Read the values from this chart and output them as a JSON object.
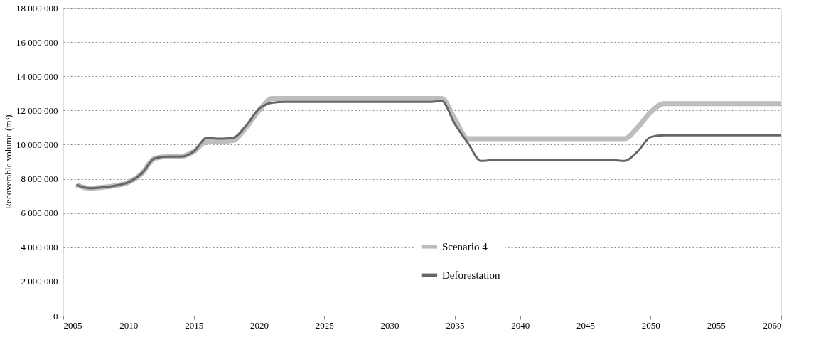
{
  "chart_data": {
    "type": "line",
    "ylabel": "Recoverable volume (m³)",
    "x": [
      2006,
      2007,
      2008,
      2009,
      2010,
      2011,
      2012,
      2013,
      2014,
      2015,
      2016,
      2017,
      2018,
      2019,
      2020,
      2021,
      2022,
      2023,
      2024,
      2025,
      2026,
      2027,
      2028,
      2029,
      2030,
      2031,
      2032,
      2033,
      2034,
      2035,
      2036,
      2037,
      2038,
      2039,
      2040,
      2041,
      2042,
      2043,
      2044,
      2045,
      2046,
      2047,
      2048,
      2049,
      2050,
      2051,
      2052,
      2053,
      2054,
      2055,
      2056,
      2057,
      2058,
      2059,
      2060
    ],
    "series": [
      {
        "name": "Scenario 4",
        "color": "#bdbdbd",
        "values": [
          7650000,
          7450000,
          7500000,
          7600000,
          7800000,
          8300000,
          9200000,
          9300000,
          9300000,
          9600000,
          10200000,
          10200000,
          10250000,
          11000000,
          12000000,
          12700000,
          12700000,
          12700000,
          12700000,
          12700000,
          12700000,
          12700000,
          12700000,
          12700000,
          12700000,
          12700000,
          12700000,
          12700000,
          12700000,
          11500000,
          10350000,
          10350000,
          10350000,
          10350000,
          10350000,
          10350000,
          10350000,
          10350000,
          10350000,
          10350000,
          10350000,
          10350000,
          10350000,
          11000000,
          11900000,
          12400000,
          12400000,
          12400000,
          12400000,
          12400000,
          12400000,
          12400000,
          12400000,
          12400000,
          12400000
        ]
      },
      {
        "name": "Deforestation",
        "color": "#666666",
        "values": [
          7650000,
          7450000,
          7500000,
          7600000,
          7800000,
          8300000,
          9200000,
          9300000,
          9300000,
          9600000,
          10400000,
          10350000,
          10400000,
          11100000,
          12100000,
          12450000,
          12500000,
          12500000,
          12500000,
          12500000,
          12500000,
          12500000,
          12500000,
          12500000,
          12500000,
          12500000,
          12500000,
          12500000,
          12550000,
          11200000,
          10100000,
          9050000,
          9100000,
          9100000,
          9100000,
          9100000,
          9100000,
          9100000,
          9100000,
          9100000,
          9100000,
          9100000,
          9050000,
          9600000,
          10450000,
          10550000,
          10550000,
          10550000,
          10550000,
          10550000,
          10550000,
          10550000,
          10550000,
          10550000,
          10550000
        ]
      }
    ],
    "xlim": [
      2005,
      2060
    ],
    "xticks": [
      2005,
      2010,
      2015,
      2020,
      2025,
      2030,
      2035,
      2040,
      2045,
      2050,
      2055,
      2060
    ],
    "ylim": [
      0,
      18000000
    ],
    "yticks": [
      {
        "value": 0,
        "label": "0"
      },
      {
        "value": 2000000,
        "label": "2 000 000"
      },
      {
        "value": 4000000,
        "label": "4 000 000"
      },
      {
        "value": 6000000,
        "label": "6 000 000"
      },
      {
        "value": 8000000,
        "label": "8 000 000"
      },
      {
        "value": 10000000,
        "label": "10 000 000"
      },
      {
        "value": 12000000,
        "label": "12 000 000"
      },
      {
        "value": 14000000,
        "label": "14 000 000"
      },
      {
        "value": 16000000,
        "label": "16 000 000"
      },
      {
        "value": 18000000,
        "label": "18 000 000"
      }
    ],
    "grid": "y",
    "legend": "bottom",
    "marker": "none",
    "line_style": "solid"
  }
}
